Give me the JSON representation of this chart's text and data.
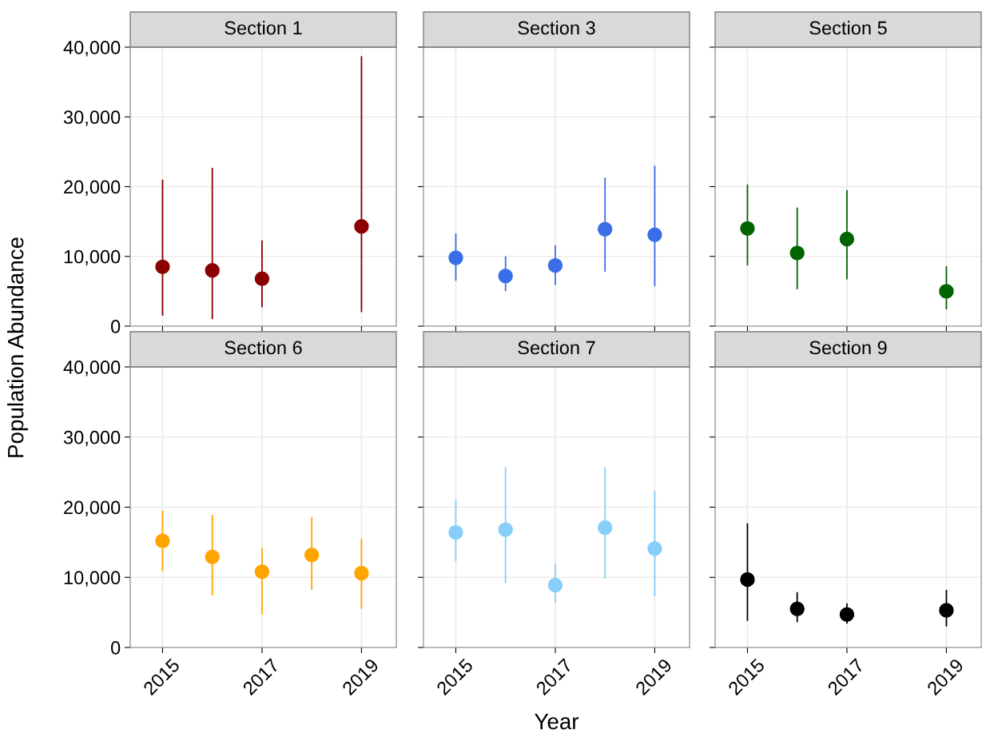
{
  "chart_data": [
    {
      "type": "scatter",
      "title": "Section 1",
      "ylabel": "Population Abundance",
      "x": [
        2015,
        2016,
        2017,
        2019
      ],
      "series": [
        {
          "color": "#8b0000",
          "values": [
            8500,
            8000,
            6800,
            14300
          ],
          "errors": [
            [
              1500,
              21000
            ],
            [
              1000,
              22700
            ],
            [
              2700,
              12300
            ],
            [
              2000,
              38700
            ]
          ]
        }
      ],
      "xlim": [
        2014.35,
        2019.7
      ],
      "ylim": [
        0,
        40000
      ],
      "xticks": [
        2015,
        2017,
        2019
      ],
      "yticks": [
        {
          "value": 0,
          "label": "0"
        },
        {
          "value": 10000,
          "label": "10,000"
        },
        {
          "value": 20000,
          "label": "20,000"
        },
        {
          "value": 30000,
          "label": "30,000"
        },
        {
          "value": 40000,
          "label": "40,000"
        }
      ],
      "tick_labels": "y",
      "grid": true,
      "marker": "circle"
    },
    {
      "type": "scatter",
      "title": "Section 3",
      "x": [
        2015,
        2016,
        2017,
        2018,
        2019
      ],
      "series": [
        {
          "color": "#3a6ee8",
          "values": [
            9800,
            7200,
            8700,
            13900,
            13100
          ],
          "errors": [
            [
              6500,
              13300
            ],
            [
              5000,
              10000
            ],
            [
              5900,
              11600
            ],
            [
              7800,
              21300
            ],
            [
              5700,
              23000
            ]
          ]
        }
      ],
      "xlim": [
        2014.35,
        2019.7
      ],
      "ylim": [
        0,
        40000
      ],
      "xticks": [
        2015,
        2017,
        2019
      ],
      "yticks": [
        0,
        10000,
        20000,
        30000,
        40000
      ],
      "tick_labels": false,
      "grid": true,
      "marker": "circle"
    },
    {
      "type": "scatter",
      "title": "Section 5",
      "x": [
        2015,
        2016,
        2017,
        2019
      ],
      "series": [
        {
          "color": "#006400",
          "values": [
            14000,
            10500,
            12500,
            5000
          ],
          "errors": [
            [
              8700,
              20300
            ],
            [
              5300,
              17000
            ],
            [
              6700,
              19500
            ],
            [
              2400,
              8600
            ]
          ]
        }
      ],
      "xlim": [
        2014.35,
        2019.7
      ],
      "ylim": [
        0,
        40000
      ],
      "xticks": [
        2015,
        2017,
        2019
      ],
      "yticks": [
        0,
        10000,
        20000,
        30000,
        40000
      ],
      "tick_labels": false,
      "grid": true,
      "marker": "circle"
    },
    {
      "type": "scatter",
      "title": "Section 6",
      "x": [
        2015,
        2016,
        2017,
        2018,
        2019
      ],
      "series": [
        {
          "color": "#ffa500",
          "values": [
            15200,
            12900,
            10800,
            13200,
            10600
          ],
          "errors": [
            [
              10900,
              19500
            ],
            [
              7400,
              18900
            ],
            [
              4700,
              14200
            ],
            [
              8200,
              18600
            ],
            [
              5500,
              15500
            ]
          ]
        }
      ],
      "xlim": [
        2014.35,
        2019.7
      ],
      "ylim": [
        0,
        40000
      ],
      "xticks": [
        2015,
        2017,
        2019
      ],
      "yticks": [
        {
          "value": 0,
          "label": "0"
        },
        {
          "value": 10000,
          "label": "10,000"
        },
        {
          "value": 20000,
          "label": "20,000"
        },
        {
          "value": 30000,
          "label": "30,000"
        },
        {
          "value": 40000,
          "label": "40,000"
        }
      ],
      "grid": true,
      "marker": "circle"
    },
    {
      "type": "scatter",
      "title": "Section 7",
      "xlabel": "Year",
      "x": [
        2015,
        2016,
        2017,
        2018,
        2019
      ],
      "series": [
        {
          "color": "#87cefa",
          "values": [
            16400,
            16800,
            8900,
            17100,
            14100
          ],
          "errors": [
            [
              12300,
              21000
            ],
            [
              9200,
              25700
            ],
            [
              6400,
              11900
            ],
            [
              9800,
              25700
            ],
            [
              7300,
              22300
            ]
          ]
        }
      ],
      "xlim": [
        2014.35,
        2019.7
      ],
      "ylim": [
        0,
        40000
      ],
      "xticks": [
        2015,
        2017,
        2019
      ],
      "yticks": [
        0,
        10000,
        20000,
        30000,
        40000
      ],
      "tick_labels": "x",
      "grid": true,
      "marker": "circle"
    },
    {
      "type": "scatter",
      "title": "Section 9",
      "x": [
        2015,
        2016,
        2017,
        2019
      ],
      "series": [
        {
          "color": "#000000",
          "values": [
            9700,
            5500,
            4700,
            5300
          ],
          "errors": [
            [
              3800,
              17700
            ],
            [
              3600,
              7900
            ],
            [
              3400,
              6300
            ],
            [
              3000,
              8200
            ]
          ]
        }
      ],
      "xlim": [
        2014.35,
        2019.7
      ],
      "ylim": [
        0,
        40000
      ],
      "xticks": [
        2015,
        2017,
        2019
      ],
      "yticks": [
        0,
        10000,
        20000,
        30000,
        40000
      ],
      "tick_labels": "x",
      "grid": true,
      "marker": "circle"
    }
  ]
}
